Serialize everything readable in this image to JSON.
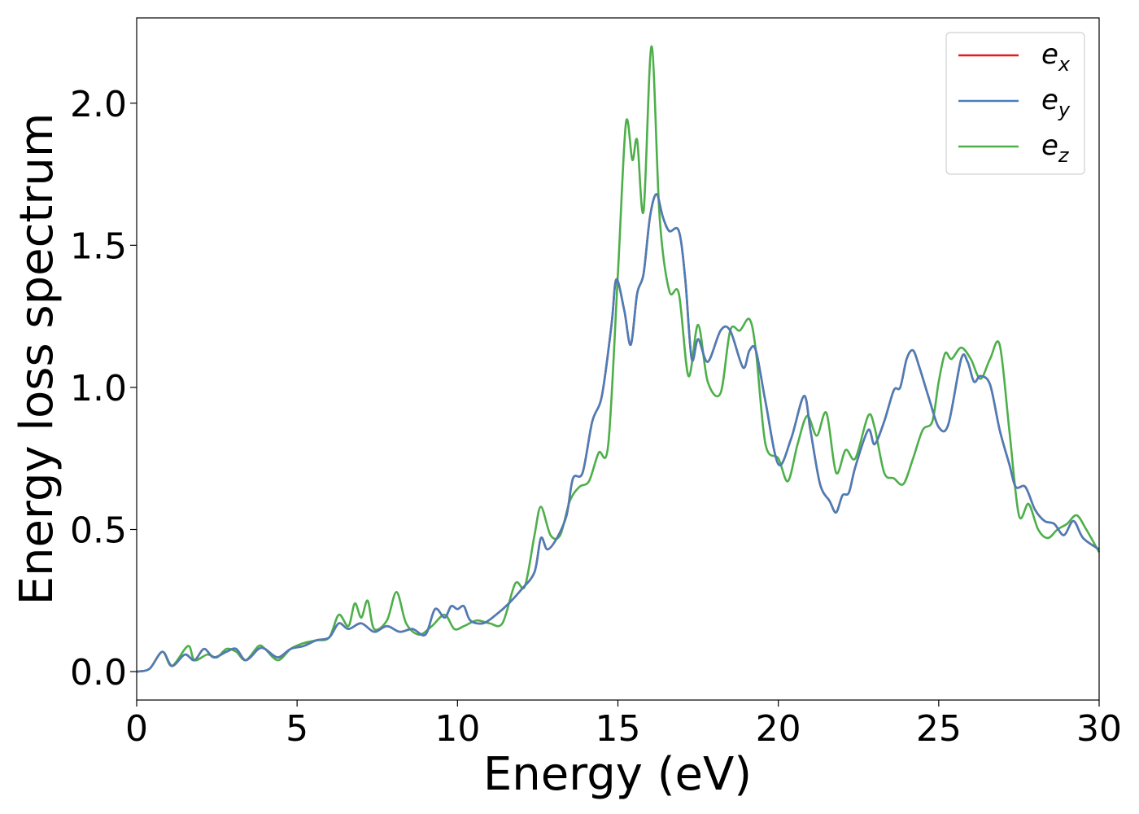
{
  "chart_data": {
    "type": "line",
    "xlabel": "Energy (eV)",
    "ylabel": "Energy loss spectrum",
    "xlim": [
      0,
      30
    ],
    "ylim": [
      -0.1,
      2.3
    ],
    "xticks": [
      0,
      5,
      10,
      15,
      20,
      25,
      30
    ],
    "xtick_labels": [
      "0",
      "5",
      "10",
      "15",
      "20",
      "25",
      "30"
    ],
    "yticks": [
      0.0,
      0.5,
      1.0,
      1.5,
      2.0
    ],
    "ytick_labels": [
      "0.0",
      "0.5",
      "1.0",
      "1.5",
      "2.0"
    ],
    "grid": false,
    "legend_position": "top-right",
    "series": [
      {
        "name": "e_x",
        "label_base": "e",
        "label_sub": "x",
        "color": "#e41a1c",
        "x": [
          0,
          0.4,
          0.8,
          1.1,
          1.5,
          1.8,
          2.1,
          2.4,
          2.8,
          3.1,
          3.4,
          3.8,
          4.0,
          4.4,
          4.8,
          5.2,
          5.6,
          6.0,
          6.3,
          6.6,
          7.0,
          7.4,
          7.8,
          8.2,
          8.6,
          9.0,
          9.3,
          9.6,
          9.8,
          10.0,
          10.2,
          10.4,
          10.8,
          11.2,
          11.6,
          12.0,
          12.4,
          12.6,
          12.8,
          13.1,
          13.4,
          13.6,
          13.9,
          14.2,
          14.5,
          14.8,
          14.95,
          15.2,
          15.4,
          15.6,
          15.8,
          16.0,
          16.2,
          16.4,
          16.6,
          16.9,
          17.1,
          17.3,
          17.5,
          17.8,
          18.2,
          18.5,
          18.9,
          19.1,
          19.3,
          19.6,
          20.0,
          20.4,
          20.8,
          21.0,
          21.3,
          21.6,
          21.8,
          22.0,
          22.2,
          22.4,
          22.8,
          23.0,
          23.3,
          23.6,
          23.8,
          24.0,
          24.2,
          24.4,
          24.7,
          25.0,
          25.3,
          25.7,
          25.9,
          26.1,
          26.3,
          26.6,
          26.9,
          27.2,
          27.4,
          27.7,
          28.0,
          28.3,
          28.6,
          28.9,
          29.2,
          29.5,
          30.0
        ],
        "y": [
          0.0,
          0.01,
          0.07,
          0.02,
          0.06,
          0.04,
          0.08,
          0.05,
          0.07,
          0.08,
          0.04,
          0.08,
          0.08,
          0.05,
          0.08,
          0.09,
          0.11,
          0.12,
          0.17,
          0.15,
          0.17,
          0.14,
          0.16,
          0.14,
          0.15,
          0.13,
          0.22,
          0.19,
          0.23,
          0.22,
          0.23,
          0.18,
          0.17,
          0.2,
          0.24,
          0.29,
          0.35,
          0.47,
          0.43,
          0.47,
          0.55,
          0.68,
          0.7,
          0.88,
          0.97,
          1.22,
          1.38,
          1.27,
          1.15,
          1.33,
          1.4,
          1.6,
          1.68,
          1.6,
          1.55,
          1.55,
          1.38,
          1.1,
          1.17,
          1.09,
          1.2,
          1.2,
          1.07,
          1.13,
          1.13,
          0.95,
          0.73,
          0.82,
          0.97,
          0.85,
          0.66,
          0.6,
          0.56,
          0.62,
          0.63,
          0.72,
          0.85,
          0.8,
          0.88,
          0.99,
          1.0,
          1.1,
          1.13,
          1.07,
          0.96,
          0.86,
          0.87,
          1.1,
          1.09,
          1.02,
          1.04,
          1.01,
          0.85,
          0.73,
          0.65,
          0.65,
          0.57,
          0.53,
          0.52,
          0.48,
          0.53,
          0.47,
          0.43
        ]
      },
      {
        "name": "e_y",
        "label_base": "e",
        "label_sub": "y",
        "color": "#4a7eb8",
        "x": [
          0,
          0.4,
          0.8,
          1.1,
          1.5,
          1.8,
          2.1,
          2.4,
          2.8,
          3.1,
          3.4,
          3.8,
          4.0,
          4.4,
          4.8,
          5.2,
          5.6,
          6.0,
          6.3,
          6.6,
          7.0,
          7.4,
          7.8,
          8.2,
          8.6,
          9.0,
          9.3,
          9.6,
          9.8,
          10.0,
          10.2,
          10.4,
          10.8,
          11.2,
          11.6,
          12.0,
          12.4,
          12.6,
          12.8,
          13.1,
          13.4,
          13.6,
          13.9,
          14.2,
          14.5,
          14.8,
          14.95,
          15.2,
          15.4,
          15.6,
          15.8,
          16.0,
          16.2,
          16.4,
          16.6,
          16.9,
          17.1,
          17.3,
          17.5,
          17.8,
          18.2,
          18.5,
          18.9,
          19.1,
          19.3,
          19.6,
          20.0,
          20.4,
          20.8,
          21.0,
          21.3,
          21.6,
          21.8,
          22.0,
          22.2,
          22.4,
          22.8,
          23.0,
          23.3,
          23.6,
          23.8,
          24.0,
          24.2,
          24.4,
          24.7,
          25.0,
          25.3,
          25.7,
          25.9,
          26.1,
          26.3,
          26.6,
          26.9,
          27.2,
          27.4,
          27.7,
          28.0,
          28.3,
          28.6,
          28.9,
          29.2,
          29.5,
          30.0
        ],
        "y": [
          0.0,
          0.01,
          0.07,
          0.02,
          0.06,
          0.04,
          0.08,
          0.05,
          0.07,
          0.08,
          0.04,
          0.08,
          0.08,
          0.05,
          0.08,
          0.09,
          0.11,
          0.12,
          0.17,
          0.15,
          0.17,
          0.14,
          0.16,
          0.14,
          0.15,
          0.13,
          0.22,
          0.19,
          0.23,
          0.22,
          0.23,
          0.18,
          0.17,
          0.2,
          0.24,
          0.29,
          0.35,
          0.47,
          0.43,
          0.47,
          0.55,
          0.68,
          0.7,
          0.88,
          0.97,
          1.22,
          1.38,
          1.27,
          1.15,
          1.33,
          1.4,
          1.6,
          1.68,
          1.6,
          1.55,
          1.55,
          1.38,
          1.1,
          1.17,
          1.09,
          1.2,
          1.2,
          1.07,
          1.13,
          1.13,
          0.95,
          0.73,
          0.82,
          0.97,
          0.85,
          0.66,
          0.6,
          0.56,
          0.62,
          0.63,
          0.72,
          0.85,
          0.8,
          0.88,
          0.99,
          1.0,
          1.1,
          1.13,
          1.07,
          0.96,
          0.86,
          0.87,
          1.1,
          1.09,
          1.02,
          1.04,
          1.01,
          0.85,
          0.73,
          0.65,
          0.65,
          0.57,
          0.53,
          0.52,
          0.48,
          0.53,
          0.47,
          0.43
        ]
      },
      {
        "name": "e_z",
        "label_base": "e",
        "label_sub": "z",
        "color": "#4daf4a",
        "x": [
          0,
          0.4,
          0.8,
          1.1,
          1.6,
          1.8,
          2.2,
          2.5,
          2.8,
          3.1,
          3.4,
          3.8,
          4.0,
          4.4,
          4.8,
          5.2,
          5.6,
          6.0,
          6.3,
          6.6,
          6.8,
          7.0,
          7.2,
          7.4,
          7.8,
          8.1,
          8.4,
          8.8,
          9.2,
          9.6,
          9.9,
          10.2,
          10.6,
          11.0,
          11.4,
          11.8,
          12.1,
          12.4,
          12.6,
          12.9,
          13.2,
          13.5,
          13.8,
          14.1,
          14.4,
          14.7,
          15.0,
          15.25,
          15.45,
          15.6,
          15.8,
          16.05,
          16.3,
          16.6,
          16.9,
          17.2,
          17.5,
          17.8,
          18.2,
          18.5,
          18.8,
          19.1,
          19.3,
          19.6,
          20.0,
          20.3,
          20.6,
          20.9,
          21.2,
          21.5,
          21.8,
          22.1,
          22.4,
          22.8,
          23.0,
          23.3,
          23.6,
          23.9,
          24.2,
          24.5,
          24.8,
          25.0,
          25.2,
          25.4,
          25.7,
          26.0,
          26.3,
          26.6,
          26.9,
          27.2,
          27.5,
          27.8,
          28.1,
          28.4,
          28.7,
          29.0,
          29.3,
          29.6,
          30.0
        ],
        "y": [
          0.0,
          0.01,
          0.07,
          0.02,
          0.09,
          0.04,
          0.06,
          0.05,
          0.08,
          0.07,
          0.04,
          0.09,
          0.08,
          0.04,
          0.08,
          0.1,
          0.11,
          0.12,
          0.2,
          0.16,
          0.24,
          0.19,
          0.25,
          0.15,
          0.18,
          0.28,
          0.17,
          0.13,
          0.16,
          0.2,
          0.15,
          0.16,
          0.18,
          0.17,
          0.17,
          0.31,
          0.3,
          0.48,
          0.58,
          0.48,
          0.48,
          0.6,
          0.65,
          0.67,
          0.77,
          0.8,
          1.4,
          1.93,
          1.8,
          1.87,
          1.62,
          2.2,
          1.6,
          1.34,
          1.33,
          1.04,
          1.22,
          1.02,
          0.98,
          1.2,
          1.2,
          1.24,
          1.13,
          0.8,
          0.75,
          0.67,
          0.8,
          0.9,
          0.83,
          0.91,
          0.7,
          0.78,
          0.75,
          0.9,
          0.86,
          0.7,
          0.68,
          0.66,
          0.75,
          0.85,
          0.88,
          1.02,
          1.12,
          1.1,
          1.14,
          1.1,
          1.03,
          1.1,
          1.15,
          0.85,
          0.55,
          0.59,
          0.5,
          0.47,
          0.5,
          0.52,
          0.55,
          0.5,
          0.42
        ]
      }
    ]
  }
}
